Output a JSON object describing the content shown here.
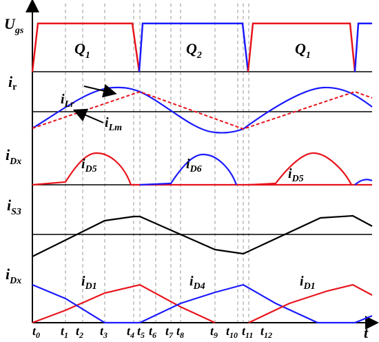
{
  "panels": {
    "ugs": {
      "axis_label_main": "U",
      "axis_label_sub": "gs",
      "q1_first": {
        "main": "Q",
        "sub": "1"
      },
      "q2": {
        "main": "Q",
        "sub": "2"
      },
      "q1_second": {
        "main": "Q",
        "sub": "1"
      }
    },
    "ir": {
      "axis_label_main": "i",
      "axis_label_sub": "r",
      "ilr_main": "i",
      "ilr_sub": "Lr",
      "ilm_main": "i",
      "ilm_sub": "Lm"
    },
    "idx_top": {
      "axis_label_main": "i",
      "axis_label_sub": "Dx",
      "d5a_main": "i",
      "d5a_sub": "D5",
      "d6_main": "i",
      "d6_sub": "D6",
      "d5b_main": "i",
      "d5b_sub": "D5"
    },
    "is3": {
      "axis_label_main": "i",
      "axis_label_sub": "S3"
    },
    "idx_bottom": {
      "axis_label_main": "i",
      "axis_label_sub": "Dx",
      "d1a_main": "i",
      "d1a_sub": "D1",
      "d4_main": "i",
      "d4_sub": "D4",
      "d1b_main": "i",
      "d1b_sub": "D1"
    }
  },
  "time_axis": {
    "label": "t",
    "ticks": [
      {
        "main": "t",
        "sub": "0"
      },
      {
        "main": "t",
        "sub": "1"
      },
      {
        "main": "t",
        "sub": "2"
      },
      {
        "main": "t",
        "sub": "3"
      },
      {
        "main": "t",
        "sub": "4"
      },
      {
        "main": "t",
        "sub": "5"
      },
      {
        "main": "t",
        "sub": "6"
      },
      {
        "main": "t",
        "sub": "7"
      },
      {
        "main": "t",
        "sub": "8"
      },
      {
        "main": "t",
        "sub": "9"
      },
      {
        "main": "t",
        "sub": "10"
      },
      {
        "main": "t",
        "sub": "11"
      },
      {
        "main": "t",
        "sub": "12"
      }
    ]
  },
  "colors": {
    "q1": "#e8141c",
    "q2": "#1a1aff",
    "black": "#000000",
    "grid": "#9a9a9a"
  }
}
